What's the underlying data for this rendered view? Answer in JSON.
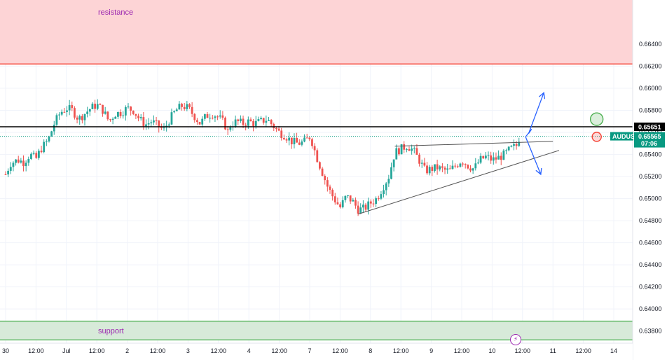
{
  "chart_data": {
    "type": "candlestick",
    "symbol": "AUDUSD",
    "price_scale": {
      "ylim": [
        0.6369,
        0.668
      ],
      "ticks": [
        "0.66400",
        "0.66200",
        "0.66000",
        "0.65800",
        "0.65600",
        "0.65400",
        "0.65200",
        "0.65000",
        "0.64800",
        "0.64600",
        "0.64400",
        "0.64200",
        "0.64000",
        "0.63800"
      ],
      "tick_values": [
        0.664,
        0.662,
        0.66,
        0.658,
        0.656,
        0.654,
        0.652,
        0.65,
        0.648,
        0.646,
        0.644,
        0.642,
        0.64,
        0.638
      ]
    },
    "time_axis": {
      "labels": [
        "30",
        "12:00",
        "Jul",
        "12:00",
        "2",
        "12:00",
        "3",
        "12:00",
        "4",
        "12:00",
        "7",
        "12:00",
        "8",
        "12:00",
        "9",
        "12:00",
        "10",
        "12:00",
        "11",
        "12:00",
        "14"
      ],
      "positions": [
        0,
        0.5,
        1,
        1.5,
        2,
        2.5,
        3,
        3.5,
        4,
        4.5,
        5,
        5.5,
        6,
        6.5,
        7,
        7.5,
        8,
        8.5,
        9,
        9.5,
        10
      ]
    },
    "candles_close_path": [
      [
        0.0,
        0.6522
      ],
      [
        0.08,
        0.6532
      ],
      [
        0.2,
        0.6535
      ],
      [
        0.3,
        0.6533
      ],
      [
        0.4,
        0.654
      ],
      [
        0.5,
        0.6536
      ],
      [
        0.58,
        0.6545
      ],
      [
        0.7,
        0.6553
      ],
      [
        0.8,
        0.6568
      ],
      [
        0.9,
        0.6578
      ],
      [
        1.0,
        0.6582
      ],
      [
        1.1,
        0.658
      ],
      [
        1.2,
        0.6572
      ],
      [
        1.3,
        0.6577
      ],
      [
        1.4,
        0.6582
      ],
      [
        1.5,
        0.6585
      ],
      [
        1.6,
        0.658
      ],
      [
        1.7,
        0.657
      ],
      [
        1.8,
        0.6577
      ],
      [
        1.9,
        0.6578
      ],
      [
        2.0,
        0.6582
      ],
      [
        2.1,
        0.658
      ],
      [
        2.2,
        0.6572
      ],
      [
        2.3,
        0.6567
      ],
      [
        2.4,
        0.657
      ],
      [
        2.5,
        0.6566
      ],
      [
        2.6,
        0.6562
      ],
      [
        2.7,
        0.6572
      ],
      [
        2.8,
        0.658
      ],
      [
        2.9,
        0.6584
      ],
      [
        3.0,
        0.6582
      ],
      [
        3.1,
        0.6575
      ],
      [
        3.2,
        0.6568
      ],
      [
        3.3,
        0.6575
      ],
      [
        3.4,
        0.6577
      ],
      [
        3.5,
        0.6574
      ],
      [
        3.6,
        0.6568
      ],
      [
        3.65,
        0.656
      ],
      [
        3.7,
        0.6567
      ],
      [
        3.8,
        0.657
      ],
      [
        3.9,
        0.6568
      ],
      [
        4.0,
        0.657
      ],
      [
        4.1,
        0.6568
      ],
      [
        4.2,
        0.657
      ],
      [
        4.3,
        0.6572
      ],
      [
        4.4,
        0.6566
      ],
      [
        4.5,
        0.656
      ],
      [
        4.6,
        0.6557
      ],
      [
        4.7,
        0.6552
      ],
      [
        4.8,
        0.655
      ],
      [
        4.9,
        0.6551
      ],
      [
        5.0,
        0.6556
      ],
      [
        5.05,
        0.655
      ],
      [
        5.1,
        0.654
      ],
      [
        5.2,
        0.6525
      ],
      [
        5.3,
        0.651
      ],
      [
        5.4,
        0.65
      ],
      [
        5.5,
        0.6492
      ],
      [
        5.6,
        0.6502
      ],
      [
        5.7,
        0.6498
      ],
      [
        5.8,
        0.649
      ],
      [
        5.9,
        0.6491
      ],
      [
        6.0,
        0.6496
      ],
      [
        6.1,
        0.65
      ],
      [
        6.2,
        0.651
      ],
      [
        6.3,
        0.652
      ],
      [
        6.4,
        0.6542
      ],
      [
        6.5,
        0.6545
      ],
      [
        6.6,
        0.6548
      ],
      [
        6.7,
        0.6544
      ],
      [
        6.8,
        0.6535
      ],
      [
        6.9,
        0.6525
      ],
      [
        7.0,
        0.6527
      ],
      [
        7.1,
        0.6528
      ],
      [
        7.2,
        0.6526
      ],
      [
        7.3,
        0.6525
      ],
      [
        7.4,
        0.653
      ],
      [
        7.5,
        0.6535
      ],
      [
        7.6,
        0.653
      ],
      [
        7.7,
        0.6527
      ],
      [
        7.8,
        0.6535
      ],
      [
        7.9,
        0.6538
      ],
      [
        8.0,
        0.6535
      ],
      [
        8.1,
        0.6537
      ],
      [
        8.2,
        0.654
      ],
      [
        8.3,
        0.6545
      ],
      [
        8.4,
        0.6548
      ],
      [
        8.45,
        0.6556
      ]
    ],
    "resistance_zone": {
      "label": "resistance",
      "from": 0.6622,
      "to": 0.668
    },
    "support_zone": {
      "label": "support",
      "from": 0.6372,
      "to": 0.6389
    },
    "horizontal_level": {
      "value": 0.65651,
      "label": "0.65651"
    },
    "current_price": {
      "symbol": "AUDUSD",
      "value": "0.65565",
      "countdown": "07:06",
      "numeric": 0.65565
    },
    "trendlines": [
      {
        "from": [
          6.4,
          0.65475
        ],
        "to": [
          9.0,
          0.65519
        ]
      },
      {
        "from": [
          5.8,
          0.6486
        ],
        "to": [
          9.1,
          0.65437
        ]
      }
    ],
    "projection_arrows": [
      {
        "direction": "up",
        "from": [
          8.55,
          0.6556
        ],
        "mid": [
          8.65,
          0.6563
        ],
        "to": [
          8.85,
          0.6596
        ]
      },
      {
        "direction": "down",
        "from": [
          8.55,
          0.6556
        ],
        "to": [
          8.8,
          0.6522
        ]
      }
    ],
    "markers": [
      {
        "kind": "target-circle",
        "color": "#4caf50",
        "at": [
          9.72,
          0.6572
        ]
      },
      {
        "kind": "target-circle",
        "color": "#f44336",
        "at": [
          9.72,
          0.6556
        ]
      }
    ],
    "colors": {
      "up": "#26a69a",
      "down": "#ef5350",
      "resistance_fill": "#fdd4d6",
      "resistance_line": "#f44336",
      "support_fill": "#d7ead9",
      "support_line": "#4caf50",
      "level_line": "#000000",
      "current_price": "#089981",
      "zone_text": "#9c27b0",
      "arrow": "#2962ff",
      "trendline": "#555555"
    }
  }
}
